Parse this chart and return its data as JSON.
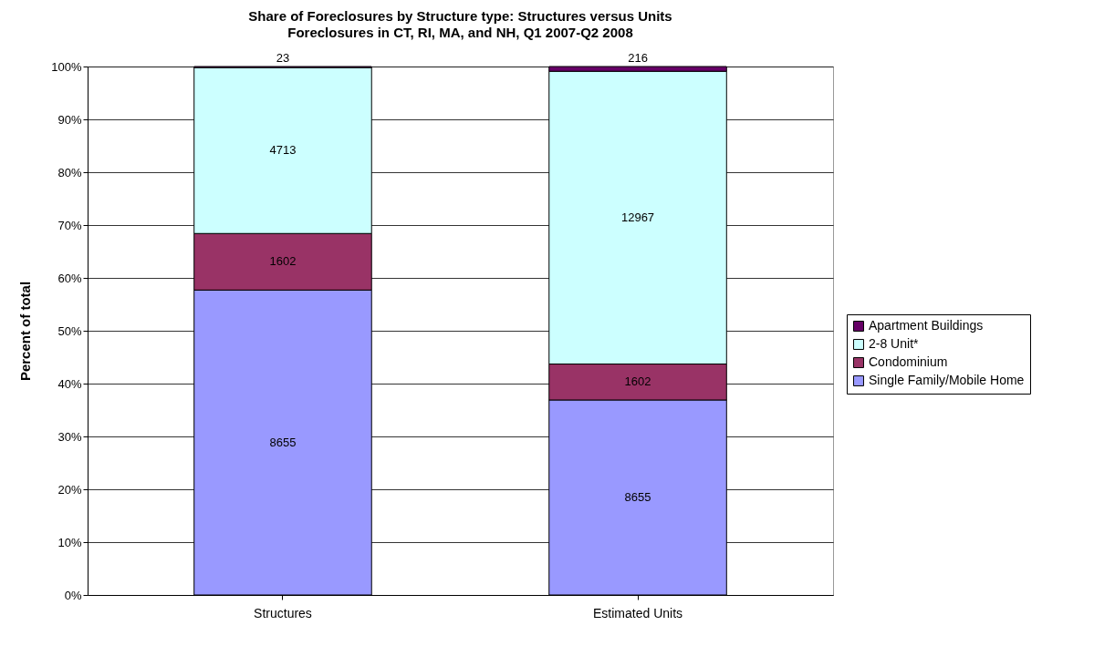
{
  "chart_data": {
    "type": "bar",
    "stacked": true,
    "title": "Share of Foreclosures by Structure type:  Structures versus Units",
    "subtitle": "Foreclosures in CT, RI, MA, and NH, Q1 2007-Q2 2008",
    "ylabel": "Percent of total",
    "categories": [
      "Structures",
      "Estimated Units"
    ],
    "series": [
      {
        "name": "Single Family/Mobile Home",
        "color": "#9999ff",
        "values": [
          57.7,
          36.9
        ]
      },
      {
        "name": "Condominium",
        "color": "#993366",
        "values": [
          10.7,
          6.8
        ]
      },
      {
        "name": "2-8 Unit*",
        "color": "#ccffff",
        "values": [
          31.4,
          55.4
        ]
      },
      {
        "name": "Apartment Buildings",
        "color": "#660066",
        "values": [
          0.2,
          0.9
        ]
      }
    ],
    "annotations": [
      "8655",
      "8655",
      "1602",
      "1602",
      "4713",
      "12967",
      "23",
      "216"
    ],
    "ylim": [
      0,
      100
    ],
    "yticks": [
      {
        "value": 0,
        "label": "0%"
      },
      {
        "value": 10,
        "label": "10%"
      },
      {
        "value": 20,
        "label": "20%"
      },
      {
        "value": 30,
        "label": "30%"
      },
      {
        "value": 40,
        "label": "40%"
      },
      {
        "value": 50,
        "label": "50%"
      },
      {
        "value": 60,
        "label": "60%"
      },
      {
        "value": 70,
        "label": "70%"
      },
      {
        "value": 80,
        "label": "80%"
      },
      {
        "value": 90,
        "label": "90%"
      },
      {
        "value": 100,
        "label": "100%"
      }
    ],
    "grid": "y",
    "legend": "right"
  }
}
